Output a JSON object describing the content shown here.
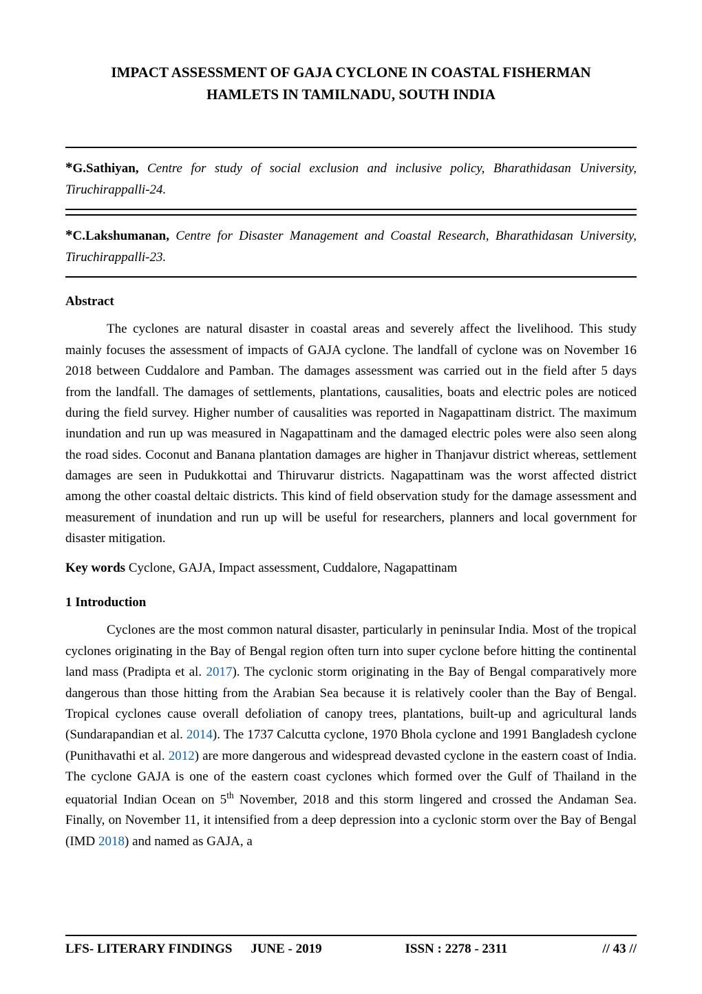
{
  "title": {
    "line1": "IMPACT ASSESSMENT OF GAJA CYCLONE IN COASTAL FISHERMAN",
    "line2": "HAMLETS IN TAMILNADU, SOUTH INDIA"
  },
  "authors": [
    {
      "asterisk": "*",
      "name": "G.Sathiyan,",
      "affiliation": "Centre for study of social exclusion and inclusive policy, Bharathidasan University, Tiruchirappalli-24."
    },
    {
      "asterisk": "*",
      "name": "C.Lakshumanan,",
      "affiliation": "Centre for Disaster Management and Coastal Research, Bharathidasan University, Tiruchirappalli-23."
    }
  ],
  "abstract": {
    "heading": "Abstract",
    "text": "The cyclones are natural disaster in coastal areas and severely affect the livelihood. This study mainly focuses the assessment of impacts of GAJA cyclone. The landfall of cyclone was on November 16 2018 between Cuddalore and Pamban. The damages assessment was carried out in the field after 5 days from the landfall. The damages of settlements, plantations, causalities, boats and electric poles are noticed during the field survey. Higher number of causalities was reported in Nagapattinam district. The maximum inundation and run up was measured in Nagapattinam and the damaged electric poles were also seen along the road sides. Coconut and Banana plantation damages are higher in Thanjavur district whereas, settlement damages are seen in Pudukkottai and Thiruvarur districts. Nagapattinam was the worst affected district among the other coastal deltaic districts. This kind of field observation study for the damage assessment and measurement of inundation and run up will be useful for researchers, planners and local government for disaster mitigation."
  },
  "keywords": {
    "label": "Key words",
    "text": "Cyclone, GAJA, Impact assessment, Cuddalore, Nagapattinam"
  },
  "introduction": {
    "heading": "1 Introduction",
    "parts": [
      {
        "type": "text",
        "value": "Cyclones are the most common natural disaster, particularly in peninsular India. Most of the tropical cyclones originating in the Bay of Bengal region often turn into super cyclone before hitting the continental land mass (Pradipta et al. "
      },
      {
        "type": "cite",
        "value": "2017"
      },
      {
        "type": "text",
        "value": "). The cyclonic storm originating in the Bay of Bengal comparatively more dangerous than those hitting from the Arabian Sea because it is relatively cooler than the Bay of Bengal. Tropical cyclones cause overall defoliation of canopy trees, plantations, built-up and agricultural lands (Sundarapandian et al. "
      },
      {
        "type": "cite",
        "value": "2014"
      },
      {
        "type": "text",
        "value": "). The 1737 Calcutta cyclone, 1970 Bhola cyclone and 1991 Bangladesh cyclone (Punithavathi et al. "
      },
      {
        "type": "cite",
        "value": "2012"
      },
      {
        "type": "text",
        "value": ") are more dangerous and widespread devasted cyclone in the eastern coast of India. The cyclone GAJA is one of the eastern coast cyclones which formed over the Gulf of Thailand in the equatorial Indian Ocean on 5"
      },
      {
        "type": "sup",
        "value": "th"
      },
      {
        "type": "text",
        "value": " November, 2018 and this storm lingered and crossed the Andaman Sea. Finally, on November 11, it intensified from a deep depression into a cyclonic storm over the Bay of Bengal (IMD "
      },
      {
        "type": "cite",
        "value": "2018"
      },
      {
        "type": "text",
        "value": ") and named as GAJA, a"
      }
    ]
  },
  "footer": {
    "journal": "LFS- LITERARY FINDINGS",
    "issue": "JUNE - 2019",
    "issn": "ISSN : 2278 - 2311",
    "page": "// 43 //"
  },
  "colors": {
    "citation": "#0563c1",
    "text": "#000000",
    "background": "#ffffff",
    "rule": "#000000"
  }
}
